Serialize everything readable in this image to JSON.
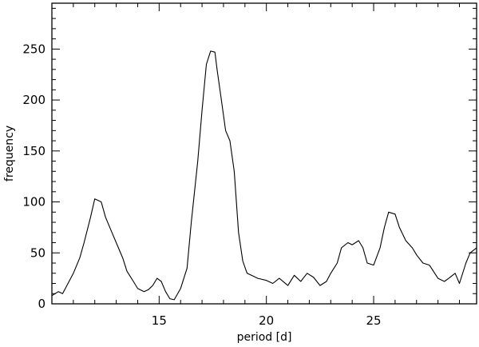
{
  "chart_data": {
    "type": "line",
    "title": "",
    "xlabel": "period [d]",
    "ylabel": "frequency",
    "xlim": [
      10,
      29.8
    ],
    "ylim": [
      0,
      295
    ],
    "xticks": [
      15,
      20,
      25
    ],
    "yticks": [
      0,
      50,
      100,
      150,
      200,
      250
    ],
    "grid": false,
    "series": [
      {
        "x": [
          10.0,
          10.3,
          10.5,
          10.8,
          11.0,
          11.3,
          11.5,
          11.8,
          12.0,
          12.3,
          12.5,
          12.8,
          13.0,
          13.3,
          13.5,
          13.8,
          14.0,
          14.3,
          14.5,
          14.7,
          14.9,
          15.1,
          15.3,
          15.5,
          15.7,
          16.0,
          16.3,
          16.5,
          16.8,
          17.0,
          17.2,
          17.4,
          17.6,
          17.7,
          17.9,
          18.1,
          18.3,
          18.5,
          18.7,
          18.9,
          19.1,
          19.3,
          19.6,
          20.0,
          20.3,
          20.6,
          21.0,
          21.3,
          21.6,
          21.9,
          22.2,
          22.5,
          22.8,
          23.0,
          23.3,
          23.5,
          23.8,
          24.0,
          24.3,
          24.5,
          24.7,
          25.0,
          25.3,
          25.5,
          25.7,
          26.0,
          26.2,
          26.5,
          26.8,
          27.0,
          27.3,
          27.6,
          28.0,
          28.3,
          28.5,
          28.8,
          29.0,
          29.3,
          29.5,
          29.8
        ],
        "values": [
          8,
          12,
          10,
          22,
          30,
          45,
          60,
          85,
          103,
          100,
          85,
          70,
          60,
          45,
          32,
          22,
          15,
          12,
          14,
          18,
          25,
          22,
          12,
          5,
          4,
          15,
          35,
          80,
          140,
          190,
          235,
          248,
          247,
          230,
          200,
          170,
          160,
          130,
          70,
          42,
          30,
          28,
          25,
          23,
          20,
          25,
          18,
          28,
          22,
          30,
          26,
          18,
          22,
          30,
          40,
          55,
          60,
          58,
          62,
          55,
          40,
          38,
          55,
          75,
          90,
          88,
          75,
          62,
          55,
          48,
          40,
          38,
          25,
          22,
          25,
          30,
          20,
          40,
          50,
          55
        ]
      }
    ]
  }
}
